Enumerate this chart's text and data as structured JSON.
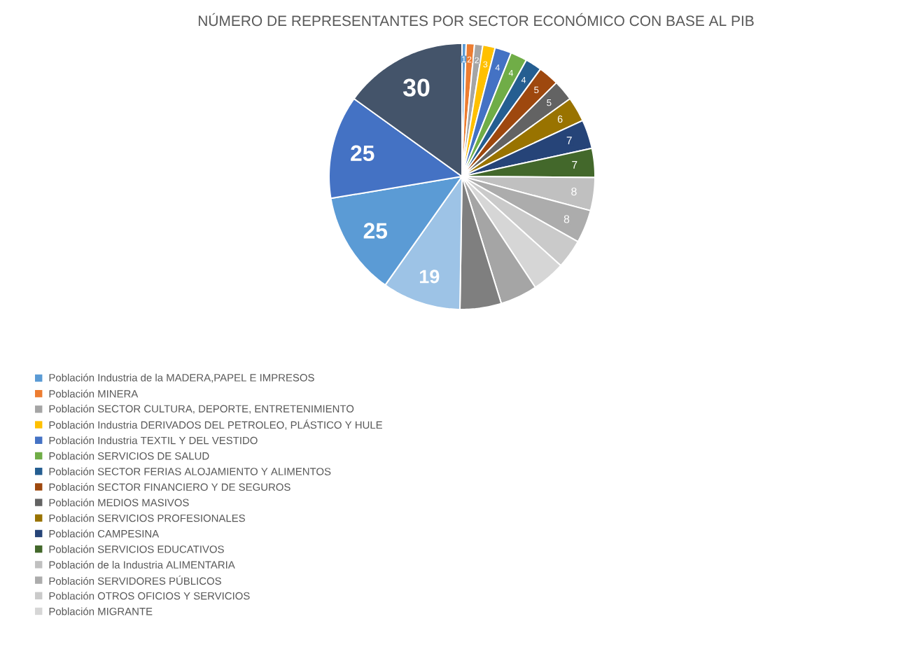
{
  "chart_data": {
    "type": "pie",
    "title": "NÚMERO DE REPRESENTANTES POR SECTOR ECONÓMICO CON BASE AL PIB",
    "categories": [
      "Población Industria de la MADERA,PAPEL E IMPRESOS",
      "Población MINERA",
      "Población SECTOR CULTURA, DEPORTE, ENTRETENIMIENTO",
      "Población Industria DERIVADOS DEL PETROLEO, PLÁSTICO Y HULE",
      "Población Industria TEXTIL Y DEL VESTIDO",
      "Población SERVICIOS DE SALUD",
      "Población SECTOR FERIAS ALOJAMIENTO Y ALIMENTOS",
      "Población SECTOR FINANCIERO Y DE SEGUROS",
      "Población MEDIOS MASIVOS",
      "Población SERVICIOS PROFESIONALES",
      "Población CAMPESINA",
      "Población SERVICIOS EDUCATIVOS",
      "Población de la Industria ALIMENTARIA",
      "Población SERVIDORES PÚBLICOS",
      "Población OTROS OFICIOS Y SERVICIOS",
      "Población MIGRANTE",
      null,
      null,
      null,
      null,
      null,
      null
    ],
    "values": [
      1,
      2,
      2,
      3,
      4,
      4,
      4,
      5,
      5,
      6,
      7,
      7,
      8,
      8,
      7,
      8,
      9,
      10,
      19,
      25,
      25,
      30
    ],
    "colors": [
      "#5b9bd5",
      "#ed7d31",
      "#a5a5a5",
      "#ffc000",
      "#4472c4",
      "#70ad47",
      "#255e91",
      "#9e480e",
      "#636363",
      "#997300",
      "#264478",
      "#43682b",
      "#c0c0c0",
      "#acacac",
      "#cacaca",
      "#d6d6d6",
      "#a5a5a5",
      "#7f7f7f",
      "#9dc3e6",
      "#5b9bd5",
      "#4472c4",
      "#44546a"
    ],
    "value_labels": [
      "1",
      "2",
      "2",
      "3",
      "4",
      "4",
      "4",
      "5",
      "5",
      "6",
      "7",
      "7",
      "8",
      "8",
      null,
      null,
      null,
      null,
      "19",
      "25",
      "25",
      "30"
    ],
    "legend": "bottom left"
  }
}
